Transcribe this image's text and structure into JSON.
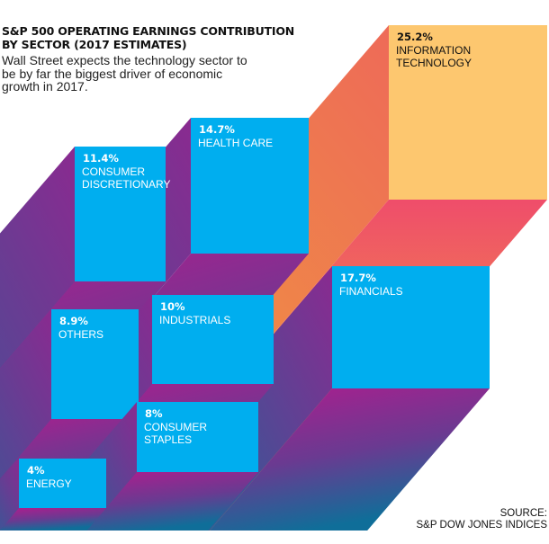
{
  "title": "S&P 500 OPERATING EARNINGS CONTRIBUTION BY SECTOR  (2017 ESTIMATES)",
  "subtitle": "Wall Street expects the technology sector to be by far the biggest driver of economic growth in 2017.",
  "source_line1": "SOURCE:",
  "source_line2": "S&P DOW JONES INDICES",
  "colors": {
    "box_blue": "#00aeef",
    "box_highlight": "#fdc76f",
    "text_on_blue": "#ffffff",
    "text_on_highlight": "#111111",
    "extrusion_magenta": "#b01c8e",
    "extrusion_teal": "#0f6e99",
    "extrusion_orange": "#f0a835",
    "extrusion_red": "#ef4f6a"
  },
  "chart_data": {
    "type": "3d-block",
    "title": "S&P 500 OPERATING EARNINGS CONTRIBUTION BY SECTOR  (2017 ESTIMATES)",
    "unit": "%",
    "sectors": [
      {
        "name": "INFORMATION TECHNOLOGY",
        "lines": [
          "INFORMATION",
          "TECHNOLOGY"
        ],
        "value": 25.2,
        "label": "25.2%",
        "highlight": true
      },
      {
        "name": "HEALTH CARE",
        "lines": [
          "HEALTH CARE"
        ],
        "value": 14.7,
        "label": "14.7%",
        "highlight": false
      },
      {
        "name": "CONSUMER DISCRETIONARY",
        "lines": [
          "CONSUMER",
          "DISCRETIONARY"
        ],
        "value": 11.4,
        "label": "11.4%",
        "highlight": false
      },
      {
        "name": "FINANCIALS",
        "lines": [
          "FINANCIALS"
        ],
        "value": 17.7,
        "label": "17.7%",
        "highlight": false
      },
      {
        "name": "INDUSTRIALS",
        "lines": [
          "INDUSTRIALS"
        ],
        "value": 10,
        "label": "10%",
        "highlight": false
      },
      {
        "name": "OTHERS",
        "lines": [
          "OTHERS"
        ],
        "value": 8.9,
        "label": "8.9%",
        "highlight": false
      },
      {
        "name": "CONSUMER STAPLES",
        "lines": [
          "CONSUMER",
          "STAPLES"
        ],
        "value": 8,
        "label": "8%",
        "highlight": false
      },
      {
        "name": "ENERGY",
        "lines": [
          "ENERGY"
        ],
        "value": 4,
        "label": "4%",
        "highlight": false
      }
    ]
  }
}
